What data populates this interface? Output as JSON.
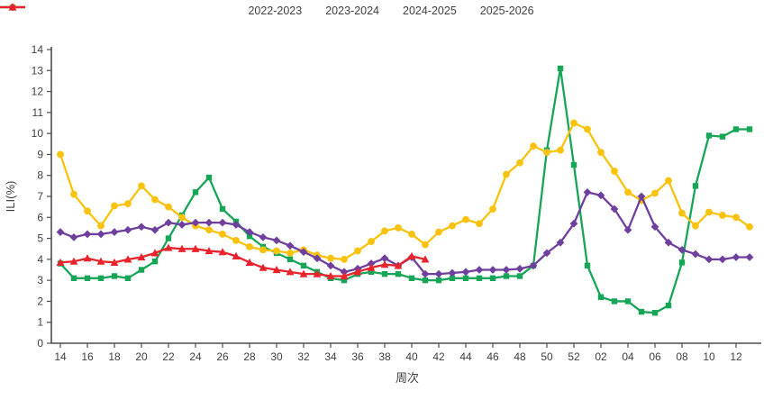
{
  "chart_data": {
    "type": "line",
    "title": "",
    "xlabel": "周次",
    "ylabel": "ILI(%)",
    "ylim": [
      0,
      14
    ],
    "y_tick_step": 1,
    "x_tick_every": 2,
    "grid": false,
    "legend_position": "top-center",
    "axis_color": "#4d4d4d",
    "text_color": "#3f3f3f",
    "x": [
      "14",
      "15",
      "16",
      "17",
      "18",
      "19",
      "20",
      "21",
      "22",
      "23",
      "24",
      "25",
      "26",
      "27",
      "28",
      "29",
      "30",
      "31",
      "32",
      "33",
      "34",
      "35",
      "36",
      "37",
      "38",
      "39",
      "40",
      "41",
      "42",
      "43",
      "44",
      "45",
      "46",
      "47",
      "48",
      "49",
      "50",
      "51",
      "52",
      "01",
      "02",
      "03",
      "04",
      "05",
      "06",
      "07",
      "08",
      "09",
      "10",
      "11",
      "12",
      "13"
    ],
    "series": [
      {
        "name": "2022-2023",
        "color": "#17a558",
        "marker": "square",
        "values": [
          3.8,
          3.1,
          3.1,
          3.1,
          3.2,
          3.1,
          3.5,
          3.9,
          5.0,
          6.1,
          7.2,
          7.9,
          6.4,
          5.8,
          5.1,
          4.6,
          4.3,
          4.0,
          3.7,
          3.4,
          3.1,
          3.0,
          3.3,
          3.4,
          3.3,
          3.3,
          3.1,
          3.0,
          3.0,
          3.1,
          3.1,
          3.1,
          3.1,
          3.2,
          3.2,
          3.7,
          9.2,
          13.1,
          8.5,
          3.7,
          2.2,
          2.0,
          2.0,
          1.5,
          1.45,
          1.8,
          3.85,
          7.5,
          9.9,
          9.85,
          10.2,
          10.2
        ]
      },
      {
        "name": "2023-2024",
        "color": "#f9c20d",
        "marker": "circle",
        "values": [
          9.0,
          7.1,
          6.3,
          5.6,
          6.55,
          6.65,
          7.5,
          6.85,
          6.5,
          6.0,
          5.6,
          5.4,
          5.2,
          4.9,
          4.6,
          4.45,
          4.4,
          4.3,
          4.45,
          4.2,
          4.05,
          4.0,
          4.4,
          4.85,
          5.35,
          5.5,
          5.2,
          4.7,
          5.3,
          5.6,
          5.9,
          5.7,
          6.4,
          8.05,
          8.6,
          9.4,
          9.1,
          9.2,
          10.5,
          10.2,
          9.1,
          8.2,
          7.2,
          6.8,
          7.15,
          7.75,
          6.2,
          5.6,
          6.25,
          6.1,
          6.0,
          5.55
        ]
      },
      {
        "name": "2024-2025",
        "color": "#6f3f9e",
        "marker": "diamond",
        "values": [
          5.3,
          5.05,
          5.2,
          5.2,
          5.3,
          5.4,
          5.55,
          5.4,
          5.75,
          5.65,
          5.75,
          5.75,
          5.75,
          5.65,
          5.3,
          5.05,
          4.9,
          4.65,
          4.35,
          4.05,
          3.7,
          3.4,
          3.55,
          3.8,
          4.05,
          3.7,
          4.1,
          3.3,
          3.3,
          3.35,
          3.4,
          3.5,
          3.5,
          3.5,
          3.55,
          3.7,
          4.3,
          4.8,
          5.7,
          7.2,
          7.05,
          6.4,
          5.4,
          7.0,
          5.55,
          4.8,
          4.45,
          4.25,
          4.0,
          4.0,
          4.1,
          4.1
        ]
      },
      {
        "name": "2025-2026",
        "color": "#e8232b",
        "marker": "triangle",
        "values": [
          3.85,
          3.9,
          4.05,
          3.9,
          3.85,
          4.0,
          4.1,
          4.3,
          4.55,
          4.5,
          4.5,
          4.4,
          4.35,
          4.15,
          3.85,
          3.6,
          3.5,
          3.4,
          3.3,
          3.3,
          3.2,
          3.2,
          3.4,
          3.6,
          3.75,
          3.7,
          4.15,
          4.0
        ]
      }
    ]
  }
}
